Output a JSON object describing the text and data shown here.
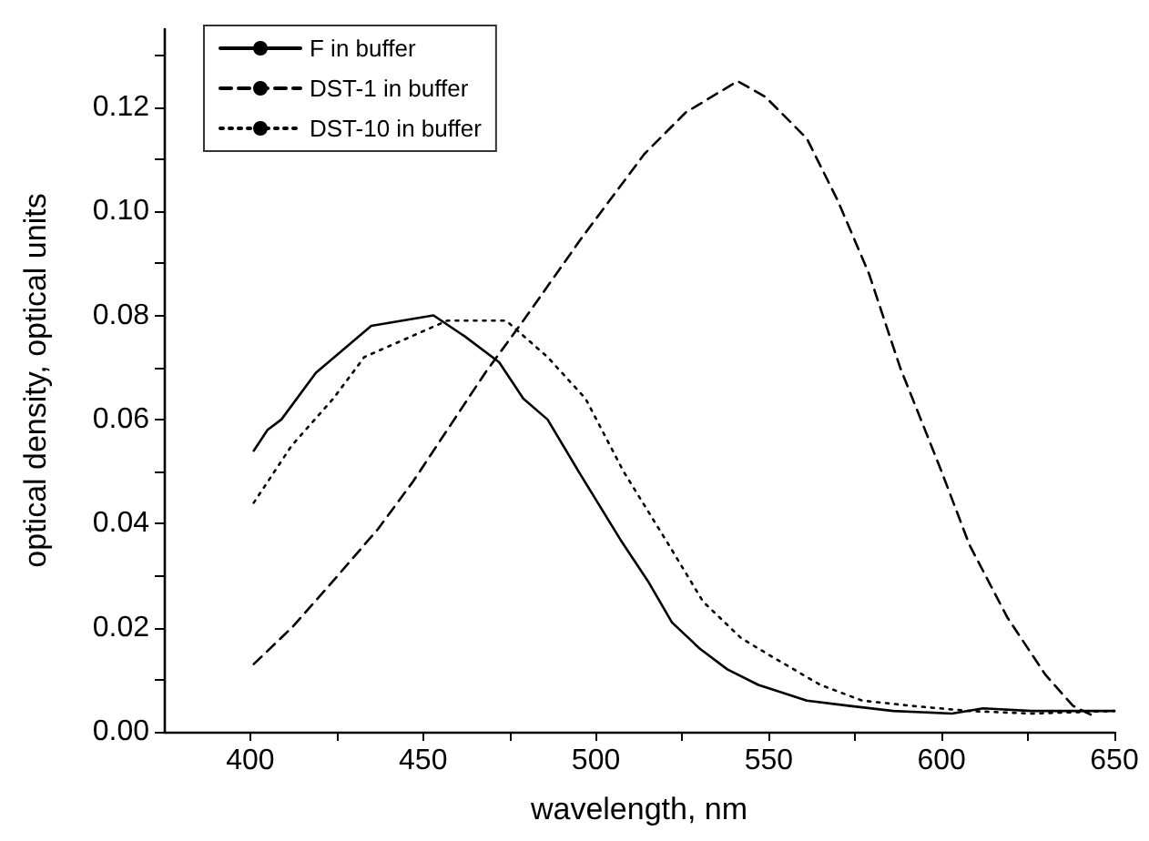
{
  "chart_data": {
    "type": "line",
    "xlabel": "wavelength, nm",
    "ylabel": "optical density, optical units",
    "xlim": [
      375,
      650
    ],
    "ylim": [
      0,
      0.135
    ],
    "xticks": [
      400,
      {
        "value": 425,
        "label": null
      },
      450,
      {
        "value": 475,
        "label": null
      },
      500,
      {
        "value": 525,
        "label": null
      },
      550,
      {
        "value": 575,
        "label": null
      },
      600,
      {
        "value": 625,
        "label": null
      },
      650
    ],
    "yticks": [
      {
        "value": 0,
        "label": "0.00"
      },
      {
        "value": 0.01,
        "label": null
      },
      {
        "value": 0.02,
        "label": "0.02"
      },
      {
        "value": 0.03,
        "label": null
      },
      {
        "value": 0.04,
        "label": "0.04"
      },
      {
        "value": 0.05,
        "label": null
      },
      {
        "value": 0.06,
        "label": "0.06"
      },
      {
        "value": 0.07,
        "label": null
      },
      {
        "value": 0.08,
        "label": "0.08"
      },
      {
        "value": 0.09,
        "label": null
      },
      {
        "value": 0.1,
        "label": "0.10"
      },
      {
        "value": 0.11,
        "label": null
      },
      {
        "value": 0.12,
        "label": "0.12"
      },
      {
        "value": 0.13,
        "label": null
      }
    ],
    "legend": "top left",
    "grid": false,
    "marker": "none",
    "series": [
      {
        "name": "F in buffer",
        "color": "#000000",
        "line_style": "solid",
        "x": [
          401,
          405,
          409,
          419,
          435,
          453,
          462,
          472,
          479,
          486,
          495,
          507,
          515,
          522,
          530,
          538,
          547,
          561,
          573,
          586,
          603,
          612,
          626,
          650
        ],
        "values": [
          0.054,
          0.058,
          0.06,
          0.069,
          0.078,
          0.08,
          0.076,
          0.071,
          0.064,
          0.06,
          0.05,
          0.037,
          0.029,
          0.021,
          0.016,
          0.012,
          0.009,
          0.006,
          0.005,
          0.004,
          0.0035,
          0.0045,
          0.004,
          0.004
        ]
      },
      {
        "name": "DST-1 in buffer",
        "color": "#000000",
        "line_style": "dashed",
        "x": [
          401,
          412,
          424,
          437,
          447,
          458,
          468,
          479,
          496,
          514,
          526,
          541,
          549,
          561,
          570,
          579,
          588,
          600,
          608,
          619,
          630,
          638,
          644
        ],
        "values": [
          0.013,
          0.02,
          0.029,
          0.039,
          0.048,
          0.059,
          0.069,
          0.079,
          0.095,
          0.111,
          0.119,
          0.125,
          0.122,
          0.114,
          0.102,
          0.088,
          0.07,
          0.05,
          0.036,
          0.022,
          0.011,
          0.005,
          0.003
        ]
      },
      {
        "name": "DST-10 in buffer",
        "color": "#000000",
        "line_style": "dotted",
        "x": [
          401,
          412,
          424,
          433,
          457,
          474,
          486,
          497,
          508,
          521,
          531,
          542,
          552,
          565,
          577,
          591,
          608,
          626,
          650
        ],
        "values": [
          0.044,
          0.055,
          0.064,
          0.072,
          0.079,
          0.079,
          0.072,
          0.064,
          0.05,
          0.036,
          0.025,
          0.018,
          0.014,
          0.009,
          0.006,
          0.005,
          0.004,
          0.0035,
          0.004
        ]
      }
    ]
  }
}
